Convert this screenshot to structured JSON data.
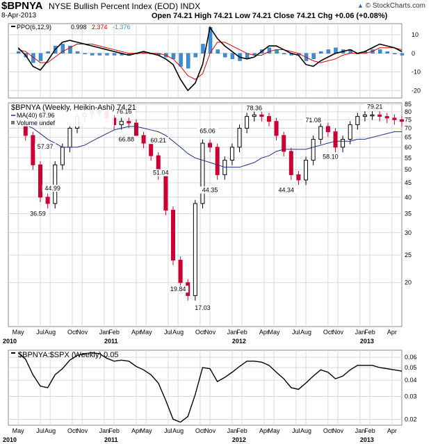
{
  "header": {
    "symbol": "$BPNYA",
    "title": "NYSE Bullish Percent Index (EOD)  INDX",
    "date": "8-Apr-2013",
    "ohlc": "Open 74.21  High 74.21  Low 74.21  Close 74.21  Chg +0.06 (+0.08%)",
    "logo": "© StockCharts.com",
    "logo_mark": "▲"
  },
  "colors": {
    "up": "#000000",
    "down": "#cc0033",
    "ma": "#1a2e8c",
    "ppo": "#000000",
    "signal": "#dd0000",
    "hist": "#3b8fd6",
    "grid": "#d8d8d8"
  },
  "panels": {
    "ppo": {
      "label": "PPO(6,12,9)",
      "value": "0.998",
      "signal": "2.374",
      "hist": "-1.376"
    },
    "price": {
      "label": "$BPNYA (Weekly, Heikin-Ashi) 74.21",
      "ma_label": "MA(40) 67.96",
      "volume_label": "Volume undef"
    },
    "ratio": {
      "label": "$BPNYA:$SPX (Weekly) 0.05"
    }
  },
  "chart_data": [
    {
      "type": "line",
      "name": "ppo",
      "ylim": [
        -24,
        16
      ],
      "yticks": [
        10,
        0,
        -10,
        -20
      ],
      "x_weeks": [
        0,
        3,
        6,
        9,
        12,
        15,
        18,
        21,
        24,
        27,
        30,
        33,
        36,
        39,
        42,
        45,
        48,
        51,
        54,
        57,
        60,
        63,
        66,
        69,
        72,
        75,
        78,
        81,
        84,
        87,
        90,
        93,
        96,
        99,
        102,
        105,
        108,
        111,
        114,
        117,
        120,
        123,
        126,
        129,
        132,
        135,
        138,
        141,
        144,
        147,
        150,
        153,
        156
      ],
      "ppo": [
        3,
        -1,
        -7,
        -9,
        -4,
        2,
        6,
        7,
        6,
        5,
        4,
        3,
        2,
        1,
        0,
        -1,
        0,
        1,
        0,
        -1,
        -3,
        -6,
        -14,
        -20,
        -16,
        -6,
        14,
        8,
        4,
        1,
        -2,
        -3,
        -2,
        1,
        4,
        4,
        2,
        0,
        -1,
        -6,
        -7,
        -4,
        -2,
        0,
        1,
        2,
        0,
        1,
        3,
        5,
        4,
        3,
        1
      ],
      "signal": [
        2,
        1,
        -2,
        -5,
        -5,
        -2,
        1,
        3,
        5,
        5,
        5,
        4,
        3,
        2,
        1,
        0,
        0,
        0,
        0,
        0,
        -1,
        -3,
        -7,
        -12,
        -14,
        -11,
        0,
        6,
        6,
        4,
        2,
        0,
        -1,
        -1,
        1,
        2,
        2,
        1,
        0,
        -2,
        -4,
        -5,
        -4,
        -3,
        -1,
        0,
        0,
        0,
        1,
        3,
        3,
        3,
        2
      ],
      "hist": [
        1,
        -2,
        -5,
        -4,
        1,
        4,
        5,
        4,
        1,
        0,
        -1,
        -1,
        -1,
        -1,
        -1,
        -1,
        0,
        1,
        0,
        -1,
        -2,
        -3,
        -7,
        -8,
        -2,
        5,
        14,
        2,
        -2,
        -3,
        -4,
        -3,
        -1,
        2,
        3,
        2,
        0,
        -1,
        -1,
        -4,
        -3,
        1,
        2,
        3,
        2,
        2,
        0,
        1,
        2,
        2,
        1,
        0,
        -1
      ]
    },
    {
      "type": "line",
      "name": "price",
      "title": "$BPNYA (Weekly, Heikin-Ashi) 74.21",
      "scale": "log",
      "ylim": [
        14,
        86
      ],
      "yticks": [
        85,
        80,
        75,
        70,
        65,
        60,
        55,
        50,
        45,
        40,
        35,
        30,
        25,
        20
      ],
      "x_weeks": [
        0,
        3,
        6,
        9,
        12,
        15,
        18,
        21,
        24,
        27,
        30,
        33,
        36,
        39,
        42,
        45,
        48,
        51,
        54,
        57,
        60,
        63,
        66,
        69,
        72,
        75,
        78,
        81,
        84,
        87,
        90,
        93,
        96,
        99,
        102,
        105,
        108,
        111,
        114,
        117,
        120,
        123,
        126,
        129,
        132,
        135,
        138,
        141,
        144,
        147,
        150,
        153,
        156
      ],
      "close": [
        72,
        66,
        52,
        40,
        38,
        52,
        60,
        70,
        77,
        79,
        80,
        80,
        76,
        72,
        74,
        73,
        66,
        62,
        56,
        48,
        36,
        24,
        20,
        18,
        38,
        62,
        60,
        48,
        54,
        60,
        70,
        77,
        78,
        77,
        74,
        66,
        58,
        48,
        46,
        54,
        64,
        71,
        68,
        60,
        64,
        72,
        77,
        78,
        78,
        77,
        76,
        75,
        74
      ],
      "ma": [
        74,
        72,
        70,
        67,
        64,
        62,
        60,
        60,
        60,
        61,
        63,
        65,
        67,
        69,
        70,
        71,
        71,
        70,
        69,
        68,
        66,
        63,
        60,
        57,
        55,
        54,
        53,
        52,
        51,
        51,
        51,
        52,
        53,
        55,
        56,
        58,
        59,
        59,
        59,
        59,
        60,
        61,
        62,
        63,
        63,
        63,
        64,
        64,
        65,
        66,
        67,
        68,
        68
      ],
      "annotations": [
        {
          "week": 8,
          "value": 36.59,
          "text": "36.59",
          "pos": "below"
        },
        {
          "week": 11,
          "value": 57.37,
          "text": "57.37",
          "pos": "above"
        },
        {
          "week": 14,
          "value": 44.99,
          "text": "44.99",
          "pos": "below"
        },
        {
          "week": 43,
          "value": 76.16,
          "text": "76.16",
          "pos": "above"
        },
        {
          "week": 44,
          "value": 66.88,
          "text": "66.88",
          "pos": "below"
        },
        {
          "week": 57,
          "value": 60.21,
          "text": "60.21",
          "pos": "above"
        },
        {
          "week": 58,
          "value": 51.04,
          "text": "51.04",
          "pos": "below"
        },
        {
          "week": 65,
          "value": 19.84,
          "text": "19.84",
          "pos": "below"
        },
        {
          "week": 75,
          "value": 17.03,
          "text": "17.03",
          "pos": "below"
        },
        {
          "week": 77,
          "value": 65.06,
          "text": "65.06",
          "pos": "above"
        },
        {
          "week": 78,
          "value": 44.35,
          "text": "44.35",
          "pos": "below"
        },
        {
          "week": 96,
          "value": 78.36,
          "text": "78.36",
          "pos": "above"
        },
        {
          "week": 109,
          "value": 44.34,
          "text": "44.34",
          "pos": "below"
        },
        {
          "week": 120,
          "value": 71.08,
          "text": "71.08",
          "pos": "above"
        },
        {
          "week": 127,
          "value": 58.1,
          "text": "58.10",
          "pos": "below"
        },
        {
          "week": 145,
          "value": 79.21,
          "text": "79.21",
          "pos": "above"
        }
      ]
    },
    {
      "type": "line",
      "name": "ratio",
      "title": "$BPNYA:$SPX (Weekly) 0.05",
      "scale": "log",
      "ylim": [
        0.018,
        0.068
      ],
      "yticks": [
        0.06,
        0.05,
        0.04,
        0.03,
        0.02
      ],
      "x_weeks": [
        0,
        3,
        6,
        9,
        12,
        15,
        18,
        21,
        24,
        27,
        30,
        33,
        36,
        39,
        42,
        45,
        48,
        51,
        54,
        57,
        60,
        63,
        66,
        69,
        72,
        75,
        78,
        81,
        84,
        87,
        90,
        93,
        96,
        99,
        102,
        105,
        108,
        111,
        114,
        117,
        120,
        123,
        126,
        129,
        132,
        135,
        138,
        141,
        144,
        147,
        150,
        153,
        156
      ],
      "values": [
        0.065,
        0.058,
        0.044,
        0.036,
        0.035,
        0.044,
        0.049,
        0.057,
        0.062,
        0.064,
        0.065,
        0.064,
        0.059,
        0.056,
        0.057,
        0.056,
        0.051,
        0.048,
        0.044,
        0.038,
        0.028,
        0.02,
        0.019,
        0.021,
        0.031,
        0.05,
        0.049,
        0.039,
        0.042,
        0.046,
        0.051,
        0.056,
        0.056,
        0.055,
        0.052,
        0.046,
        0.041,
        0.035,
        0.034,
        0.038,
        0.043,
        0.048,
        0.046,
        0.041,
        0.043,
        0.048,
        0.052,
        0.052,
        0.052,
        0.05,
        0.049,
        0.048,
        0.047
      ]
    }
  ],
  "axis": {
    "months": [
      "May",
      "Jul",
      "Aug",
      "Oct",
      "Nov",
      "Jan",
      "Feb",
      "Apr",
      "May",
      "Jul",
      "Aug",
      "Oct",
      "Nov",
      "Jan",
      "Feb",
      "Apr",
      "May",
      "Jul",
      "Aug",
      "Oct",
      "Nov",
      "Jan",
      "Feb",
      "Apr"
    ],
    "month_weeks": [
      0,
      9,
      13,
      22,
      26,
      35,
      39,
      48,
      52,
      61,
      65,
      74,
      78,
      87,
      91,
      100,
      104,
      113,
      117,
      126,
      130,
      139,
      143,
      152
    ],
    "years": [
      "2010",
      "2011",
      "2012",
      "2013"
    ],
    "year_weeks": [
      -17,
      35,
      87,
      139
    ]
  }
}
